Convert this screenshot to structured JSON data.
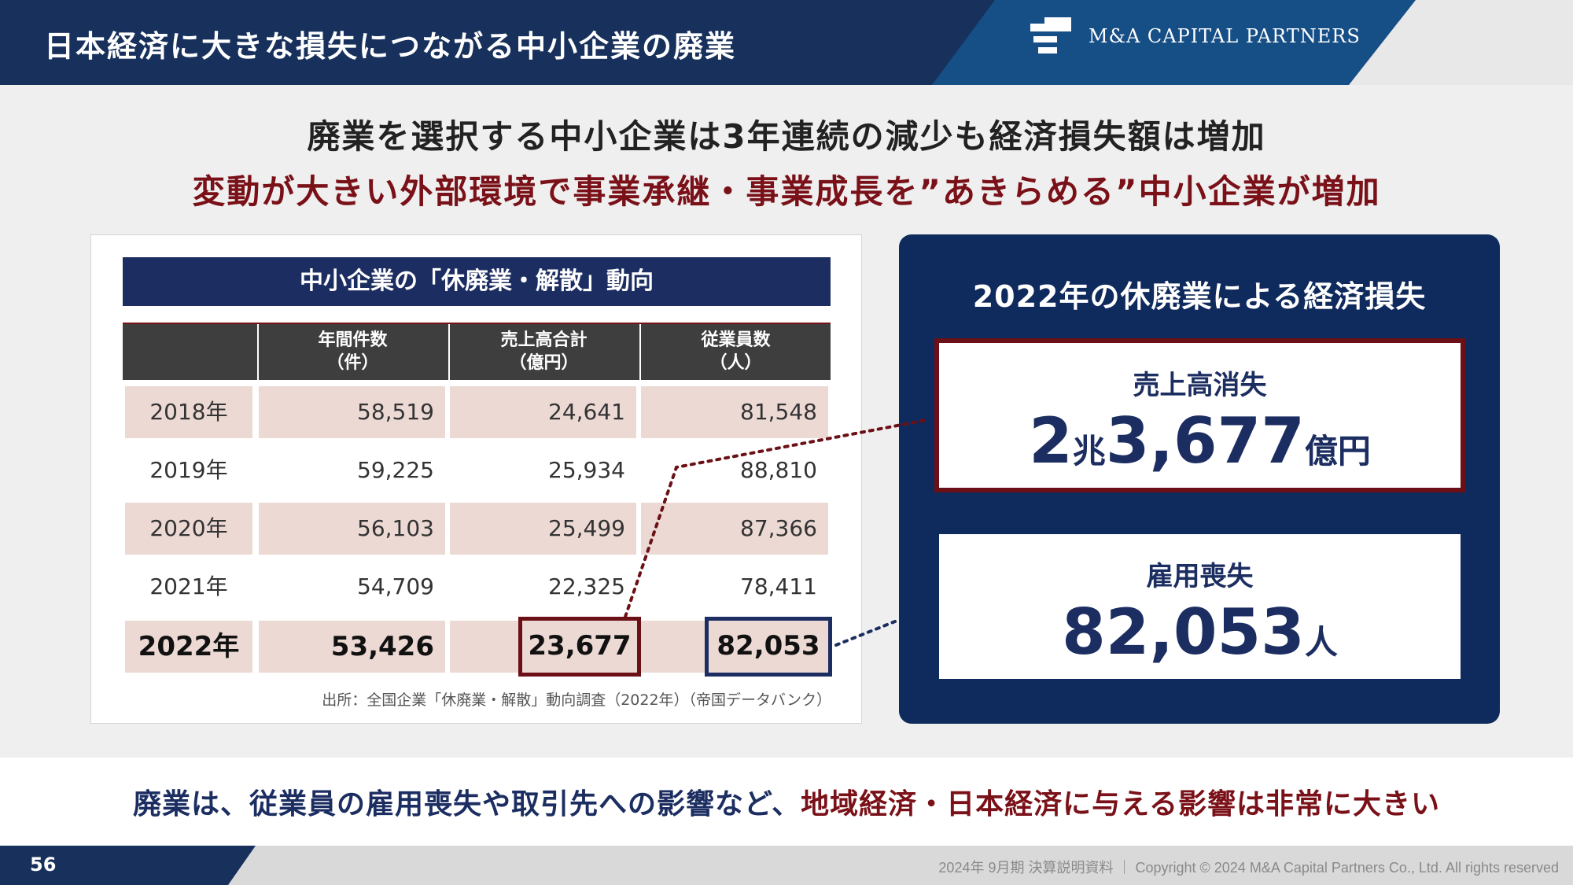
{
  "header": {
    "title": "日本経済に大きな損失につながる中小企業の廃業",
    "logo_text": "M&A CAPITAL PARTNERS"
  },
  "headline": {
    "line1": "廃業を選択する中小企業は3年連続の減少も経済損失額は増加",
    "line2": "変動が大きい外部環境で事業承継・事業成長を”あきらめる”中小企業が増加"
  },
  "table": {
    "title": "中小企業の「休廃業・解散」動向",
    "columns": [
      {
        "line1": "年間件数",
        "line2": "（件）"
      },
      {
        "line1": "売上高合計",
        "line2": "（億円）"
      },
      {
        "line1": "従業員数",
        "line2": "（人）"
      }
    ],
    "rows": [
      {
        "year": "2018年",
        "count": "58,519",
        "sales": "24,641",
        "employees": "81,548"
      },
      {
        "year": "2019年",
        "count": "59,225",
        "sales": "25,934",
        "employees": "88,810"
      },
      {
        "year": "2020年",
        "count": "56,103",
        "sales": "25,499",
        "employees": "87,366"
      },
      {
        "year": "2021年",
        "count": "54,709",
        "sales": "22,325",
        "employees": "78,411"
      },
      {
        "year": "2022年",
        "count": "53,426",
        "sales": "23,677",
        "employees": "82,053"
      }
    ],
    "source": "出所：全国企業「休廃業・解散」動向調査（2022年）（帝国データバンク）"
  },
  "loss": {
    "title": "2022年の休廃業による経済損失",
    "sales_label": "売上高消失",
    "sales_value": {
      "n1": "2",
      "u1": "兆",
      "n2": "3,677",
      "u2": "億円"
    },
    "jobs_label": "雇用喪失",
    "jobs_value": {
      "n": "82,053",
      "u": "人"
    }
  },
  "message": {
    "part1": "廃業は、従業員の雇用喪失や取引先への影響など、",
    "part2": "地域経済・日本経済に与える影響は非常に大きい"
  },
  "footer": {
    "page": "56",
    "text": "2024年 9月期 決算説明資料 ｜ Copyright © 2024 M&A Capital Partners Co., Ltd. All rights reserved"
  },
  "colors": {
    "navy": "#1c2e61",
    "dark_red": "#7a1118",
    "row_shade": "#ecd9d4"
  }
}
